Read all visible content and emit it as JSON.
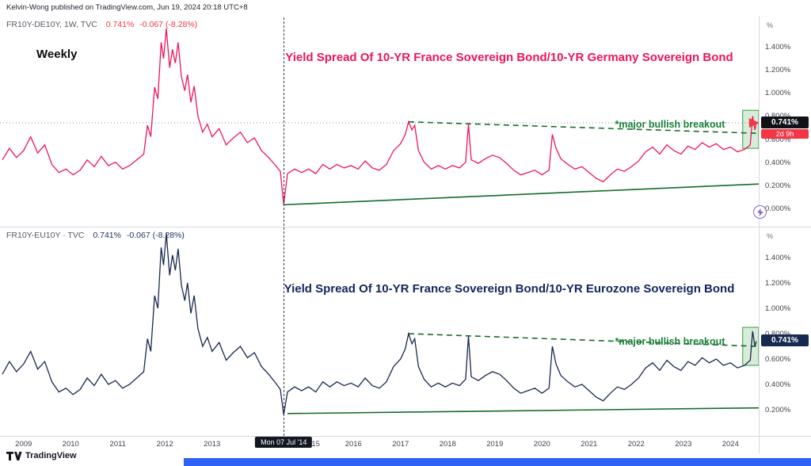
{
  "header": {
    "publish_line": "Kelvin-Wong published on TradingView.com, Jun 19, 2024 20:18 UTC+8"
  },
  "footer": {
    "brand": "TradingView"
  },
  "colors": {
    "pink_line": "#ec1558",
    "navy_line": "#18294e",
    "trend_green": "#166d28",
    "alert_red": "#f23645",
    "accent_blue": "#2e62f6"
  },
  "icons": {
    "instant_order": "lightning-bolt",
    "logo_mark": "tradingview-tv-mark"
  },
  "time_axis": {
    "ticks": [
      {
        "x": 2009,
        "label": "2009"
      },
      {
        "x": 2010,
        "label": "2010"
      },
      {
        "x": 2011,
        "label": "2011"
      },
      {
        "x": 2012,
        "label": "2012"
      },
      {
        "x": 2013,
        "label": "2013"
      },
      {
        "x": 2015.2,
        "label": "15"
      },
      {
        "x": 2016,
        "label": "2016"
      },
      {
        "x": 2017,
        "label": "2017"
      },
      {
        "x": 2018,
        "label": "2018"
      },
      {
        "x": 2019,
        "label": "2019"
      },
      {
        "x": 2020,
        "label": "2020"
      },
      {
        "x": 2021,
        "label": "2021"
      },
      {
        "x": 2022,
        "label": "2022"
      },
      {
        "x": 2023,
        "label": "2023"
      },
      {
        "x": 2024,
        "label": "2024"
      }
    ],
    "crosshair_label": {
      "x": 2014.52,
      "label": "Mon 07 Jul '14"
    }
  },
  "chart_data": [
    {
      "id": "top",
      "type": "line",
      "symbol": "FR10Y-DE10Y, 1W, TVC",
      "value": "0.741%",
      "change": "-0.067 (-8.28%)",
      "timeframe_label": "Weekly",
      "title": "Yield Spread Of 10-YR France Sovereign Bond/10-YR Germany Sovereign Bond",
      "annotation": {
        "text": "*major bullish breakout",
        "x": 2021.55,
        "y": 0.72
      },
      "axis_unit": "%",
      "price_label": "0.741%",
      "price_value": 0.741,
      "countdown": "2d 9h",
      "line_color": "#ec1558",
      "label_bg": "#101218",
      "xlim": [
        2008.5,
        2024.6
      ],
      "ylim": [
        -0.16,
        1.67
      ],
      "hline": 0.741,
      "yticks": [
        {
          "v": 1.4,
          "label": "1.400%"
        },
        {
          "v": 1.2,
          "label": "1.200%"
        },
        {
          "v": 1.0,
          "label": "1.000%"
        },
        {
          "v": 0.8,
          "label": "0.800%"
        },
        {
          "v": 0.6,
          "label": "0.600%"
        },
        {
          "v": 0.4,
          "label": "0.400%"
        },
        {
          "v": 0.2,
          "label": "0.200%"
        },
        {
          "v": 0.0,
          "label": "0.000%"
        }
      ],
      "trendlines": [
        {
          "name": "resistance-trendline-top",
          "x1": 2017.17,
          "y1": 0.75,
          "x2": 2024.6,
          "y2": 0.65,
          "dash": true,
          "color": "#166d28"
        },
        {
          "name": "support-trendline-top",
          "x1": 2014.52,
          "y1": 0.03,
          "x2": 2024.6,
          "y2": 0.21,
          "dash": false,
          "color": "#166d28"
        }
      ],
      "highlight_box": {
        "x1": 2024.26,
        "y1": 0.52,
        "x2": 2024.6,
        "y2": 0.85
      },
      "arrow": {
        "x": 2024.58,
        "y": 0.741,
        "color": "#f23645"
      },
      "series": [
        [
          2008.55,
          0.42
        ],
        [
          2008.7,
          0.52
        ],
        [
          2008.85,
          0.44
        ],
        [
          2009.0,
          0.5
        ],
        [
          2009.15,
          0.62
        ],
        [
          2009.3,
          0.48
        ],
        [
          2009.45,
          0.55
        ],
        [
          2009.6,
          0.38
        ],
        [
          2009.75,
          0.31
        ],
        [
          2009.9,
          0.34
        ],
        [
          2010.05,
          0.29
        ],
        [
          2010.2,
          0.33
        ],
        [
          2010.35,
          0.42
        ],
        [
          2010.5,
          0.36
        ],
        [
          2010.65,
          0.45
        ],
        [
          2010.8,
          0.37
        ],
        [
          2010.95,
          0.4
        ],
        [
          2011.1,
          0.34
        ],
        [
          2011.25,
          0.37
        ],
        [
          2011.4,
          0.42
        ],
        [
          2011.55,
          0.47
        ],
        [
          2011.63,
          0.72
        ],
        [
          2011.7,
          0.62
        ],
        [
          2011.78,
          1.05
        ],
        [
          2011.85,
          0.95
        ],
        [
          2011.92,
          1.44
        ],
        [
          2011.97,
          1.3
        ],
        [
          2012.03,
          1.56
        ],
        [
          2012.1,
          1.22
        ],
        [
          2012.16,
          1.38
        ],
        [
          2012.22,
          1.26
        ],
        [
          2012.28,
          1.44
        ],
        [
          2012.35,
          1.14
        ],
        [
          2012.42,
          1.02
        ],
        [
          2012.48,
          1.16
        ],
        [
          2012.55,
          0.92
        ],
        [
          2012.62,
          1.06
        ],
        [
          2012.7,
          0.8
        ],
        [
          2012.8,
          0.66
        ],
        [
          2012.9,
          0.73
        ],
        [
          2013.0,
          0.62
        ],
        [
          2013.15,
          0.69
        ],
        [
          2013.3,
          0.55
        ],
        [
          2013.45,
          0.61
        ],
        [
          2013.6,
          0.66
        ],
        [
          2013.75,
          0.57
        ],
        [
          2013.9,
          0.61
        ],
        [
          2014.05,
          0.5
        ],
        [
          2014.2,
          0.44
        ],
        [
          2014.35,
          0.37
        ],
        [
          2014.45,
          0.32
        ],
        [
          2014.52,
          0.03
        ],
        [
          2014.6,
          0.3
        ],
        [
          2014.75,
          0.34
        ],
        [
          2014.9,
          0.31
        ],
        [
          2015.05,
          0.34
        ],
        [
          2015.2,
          0.3
        ],
        [
          2015.35,
          0.38
        ],
        [
          2015.5,
          0.34
        ],
        [
          2015.65,
          0.38
        ],
        [
          2015.8,
          0.35
        ],
        [
          2015.95,
          0.37
        ],
        [
          2016.1,
          0.34
        ],
        [
          2016.25,
          0.41
        ],
        [
          2016.4,
          0.35
        ],
        [
          2016.55,
          0.33
        ],
        [
          2016.7,
          0.38
        ],
        [
          2016.85,
          0.5
        ],
        [
          2017.0,
          0.56
        ],
        [
          2017.1,
          0.64
        ],
        [
          2017.17,
          0.75
        ],
        [
          2017.24,
          0.68
        ],
        [
          2017.3,
          0.72
        ],
        [
          2017.38,
          0.5
        ],
        [
          2017.5,
          0.4
        ],
        [
          2017.65,
          0.34
        ],
        [
          2017.8,
          0.37
        ],
        [
          2017.95,
          0.34
        ],
        [
          2018.1,
          0.37
        ],
        [
          2018.25,
          0.35
        ],
        [
          2018.38,
          0.4
        ],
        [
          2018.44,
          0.73
        ],
        [
          2018.5,
          0.42
        ],
        [
          2018.65,
          0.39
        ],
        [
          2018.8,
          0.43
        ],
        [
          2018.95,
          0.46
        ],
        [
          2019.1,
          0.44
        ],
        [
          2019.25,
          0.39
        ],
        [
          2019.4,
          0.33
        ],
        [
          2019.55,
          0.29
        ],
        [
          2019.7,
          0.31
        ],
        [
          2019.85,
          0.33
        ],
        [
          2020.0,
          0.29
        ],
        [
          2020.15,
          0.33
        ],
        [
          2020.22,
          0.64
        ],
        [
          2020.3,
          0.52
        ],
        [
          2020.4,
          0.43
        ],
        [
          2020.55,
          0.38
        ],
        [
          2020.7,
          0.34
        ],
        [
          2020.85,
          0.36
        ],
        [
          2021.0,
          0.31
        ],
        [
          2021.15,
          0.26
        ],
        [
          2021.3,
          0.23
        ],
        [
          2021.45,
          0.29
        ],
        [
          2021.6,
          0.34
        ],
        [
          2021.75,
          0.32
        ],
        [
          2021.9,
          0.36
        ],
        [
          2022.05,
          0.41
        ],
        [
          2022.2,
          0.49
        ],
        [
          2022.35,
          0.53
        ],
        [
          2022.5,
          0.47
        ],
        [
          2022.65,
          0.55
        ],
        [
          2022.8,
          0.5
        ],
        [
          2022.95,
          0.47
        ],
        [
          2023.1,
          0.54
        ],
        [
          2023.25,
          0.51
        ],
        [
          2023.4,
          0.57
        ],
        [
          2023.55,
          0.53
        ],
        [
          2023.7,
          0.56
        ],
        [
          2023.85,
          0.51
        ],
        [
          2024.0,
          0.53
        ],
        [
          2024.15,
          0.49
        ],
        [
          2024.3,
          0.51
        ],
        [
          2024.42,
          0.55
        ],
        [
          2024.47,
          0.8
        ],
        [
          2024.52,
          0.68
        ],
        [
          2024.55,
          0.741
        ]
      ]
    },
    {
      "id": "bottom",
      "type": "line",
      "symbol": "FR10Y-EU10Y · TVC",
      "value": "0.741%",
      "change": "-0.067 (-8.28%)",
      "title": "Yield Spread Of 10-YR France Sovereign Bond/10-YR Eurozone Sovereign Bond",
      "annotation": {
        "text": "*major bullish breakout",
        "x": 2021.55,
        "y": 0.73
      },
      "axis_unit": "%",
      "price_label": "0.741%",
      "price_value": 0.741,
      "line_color": "#18294e",
      "label_bg": "#16294f",
      "xlim": [
        2008.5,
        2024.6
      ],
      "ylim": [
        -0.006,
        1.644
      ],
      "yticks": [
        {
          "v": 1.4,
          "label": "1.400%"
        },
        {
          "v": 1.2,
          "label": "1.200%"
        },
        {
          "v": 1.0,
          "label": "1.000%"
        },
        {
          "v": 0.8,
          "label": "0.800%"
        },
        {
          "v": 0.6,
          "label": "0.600%"
        },
        {
          "v": 0.4,
          "label": "0.400%"
        },
        {
          "v": 0.2,
          "label": "0.200%"
        }
      ],
      "trendlines": [
        {
          "name": "resistance-trendline-bottom",
          "x1": 2017.17,
          "y1": 0.8,
          "x2": 2024.6,
          "y2": 0.7,
          "dash": true,
          "color": "#166d28"
        },
        {
          "name": "support-trendline-bottom",
          "x1": 2014.6,
          "y1": 0.17,
          "x2": 2024.6,
          "y2": 0.215,
          "dash": false,
          "color": "#166d28"
        }
      ],
      "highlight_box": {
        "x1": 2024.26,
        "y1": 0.55,
        "x2": 2024.6,
        "y2": 0.85
      },
      "series": [
        [
          2008.55,
          0.48
        ],
        [
          2008.7,
          0.58
        ],
        [
          2008.85,
          0.5
        ],
        [
          2009.0,
          0.56
        ],
        [
          2009.15,
          0.66
        ],
        [
          2009.3,
          0.52
        ],
        [
          2009.45,
          0.58
        ],
        [
          2009.6,
          0.42
        ],
        [
          2009.75,
          0.34
        ],
        [
          2009.9,
          0.37
        ],
        [
          2010.05,
          0.32
        ],
        [
          2010.2,
          0.36
        ],
        [
          2010.35,
          0.45
        ],
        [
          2010.5,
          0.39
        ],
        [
          2010.65,
          0.48
        ],
        [
          2010.8,
          0.4
        ],
        [
          2010.95,
          0.43
        ],
        [
          2011.1,
          0.37
        ],
        [
          2011.25,
          0.4
        ],
        [
          2011.4,
          0.45
        ],
        [
          2011.55,
          0.5
        ],
        [
          2011.63,
          0.76
        ],
        [
          2011.7,
          0.66
        ],
        [
          2011.78,
          1.1
        ],
        [
          2011.85,
          1.0
        ],
        [
          2011.92,
          1.48
        ],
        [
          2011.97,
          1.34
        ],
        [
          2012.03,
          1.59
        ],
        [
          2012.1,
          1.26
        ],
        [
          2012.16,
          1.42
        ],
        [
          2012.22,
          1.3
        ],
        [
          2012.28,
          1.47
        ],
        [
          2012.35,
          1.18
        ],
        [
          2012.42,
          1.06
        ],
        [
          2012.48,
          1.2
        ],
        [
          2012.55,
          0.96
        ],
        [
          2012.62,
          1.1
        ],
        [
          2012.7,
          0.84
        ],
        [
          2012.8,
          0.7
        ],
        [
          2012.9,
          0.77
        ],
        [
          2013.0,
          0.66
        ],
        [
          2013.15,
          0.73
        ],
        [
          2013.3,
          0.59
        ],
        [
          2013.45,
          0.65
        ],
        [
          2013.6,
          0.7
        ],
        [
          2013.75,
          0.61
        ],
        [
          2013.9,
          0.65
        ],
        [
          2014.05,
          0.54
        ],
        [
          2014.2,
          0.48
        ],
        [
          2014.35,
          0.41
        ],
        [
          2014.45,
          0.36
        ],
        [
          2014.52,
          0.16
        ],
        [
          2014.6,
          0.34
        ],
        [
          2014.75,
          0.38
        ],
        [
          2014.9,
          0.35
        ],
        [
          2015.05,
          0.38
        ],
        [
          2015.2,
          0.34
        ],
        [
          2015.35,
          0.42
        ],
        [
          2015.5,
          0.38
        ],
        [
          2015.65,
          0.42
        ],
        [
          2015.8,
          0.39
        ],
        [
          2015.95,
          0.41
        ],
        [
          2016.1,
          0.38
        ],
        [
          2016.25,
          0.45
        ],
        [
          2016.4,
          0.39
        ],
        [
          2016.55,
          0.37
        ],
        [
          2016.7,
          0.42
        ],
        [
          2016.85,
          0.54
        ],
        [
          2017.0,
          0.6
        ],
        [
          2017.1,
          0.68
        ],
        [
          2017.17,
          0.8
        ],
        [
          2017.24,
          0.72
        ],
        [
          2017.3,
          0.76
        ],
        [
          2017.38,
          0.54
        ],
        [
          2017.5,
          0.44
        ],
        [
          2017.65,
          0.38
        ],
        [
          2017.8,
          0.41
        ],
        [
          2017.95,
          0.38
        ],
        [
          2018.1,
          0.41
        ],
        [
          2018.25,
          0.39
        ],
        [
          2018.38,
          0.44
        ],
        [
          2018.44,
          0.78
        ],
        [
          2018.5,
          0.46
        ],
        [
          2018.65,
          0.43
        ],
        [
          2018.8,
          0.47
        ],
        [
          2018.95,
          0.5
        ],
        [
          2019.1,
          0.48
        ],
        [
          2019.25,
          0.43
        ],
        [
          2019.4,
          0.37
        ],
        [
          2019.55,
          0.33
        ],
        [
          2019.7,
          0.35
        ],
        [
          2019.85,
          0.37
        ],
        [
          2020.0,
          0.33
        ],
        [
          2020.15,
          0.37
        ],
        [
          2020.22,
          0.7
        ],
        [
          2020.3,
          0.56
        ],
        [
          2020.4,
          0.47
        ],
        [
          2020.55,
          0.42
        ],
        [
          2020.7,
          0.38
        ],
        [
          2020.85,
          0.4
        ],
        [
          2021.0,
          0.35
        ],
        [
          2021.15,
          0.3
        ],
        [
          2021.3,
          0.27
        ],
        [
          2021.45,
          0.33
        ],
        [
          2021.6,
          0.38
        ],
        [
          2021.75,
          0.36
        ],
        [
          2021.9,
          0.4
        ],
        [
          2022.05,
          0.45
        ],
        [
          2022.2,
          0.53
        ],
        [
          2022.35,
          0.57
        ],
        [
          2022.5,
          0.51
        ],
        [
          2022.65,
          0.59
        ],
        [
          2022.8,
          0.54
        ],
        [
          2022.95,
          0.51
        ],
        [
          2023.1,
          0.58
        ],
        [
          2023.25,
          0.55
        ],
        [
          2023.4,
          0.61
        ],
        [
          2023.55,
          0.57
        ],
        [
          2023.7,
          0.6
        ],
        [
          2023.85,
          0.55
        ],
        [
          2024.0,
          0.57
        ],
        [
          2024.15,
          0.53
        ],
        [
          2024.3,
          0.55
        ],
        [
          2024.42,
          0.59
        ],
        [
          2024.47,
          0.82
        ],
        [
          2024.52,
          0.7
        ],
        [
          2024.55,
          0.741
        ]
      ]
    }
  ]
}
